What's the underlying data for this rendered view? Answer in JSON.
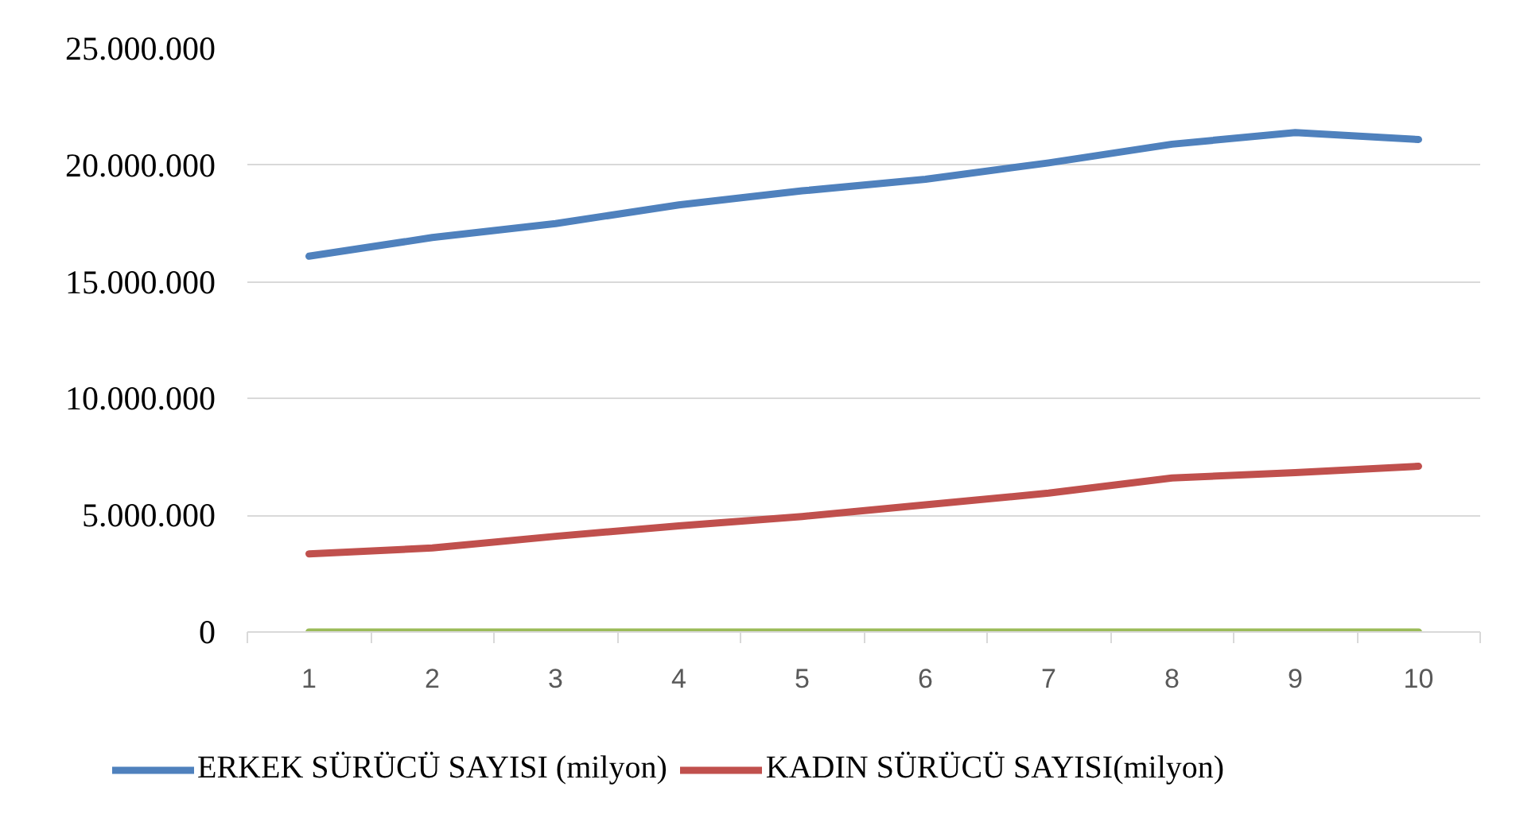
{
  "chart_data": {
    "type": "line",
    "categories": [
      "1",
      "2",
      "3",
      "4",
      "5",
      "6",
      "7",
      "8",
      "9",
      "10"
    ],
    "series": [
      {
        "name": "ERKEK SÜRÜCÜ SAYISI (milyon)",
        "color": "#4f81bd",
        "values": [
          16100000,
          16900000,
          17500000,
          18300000,
          18900000,
          19400000,
          20100000,
          20900000,
          21400000,
          21100000
        ]
      },
      {
        "name": "KADIN SÜRÜCÜ SAYISI(milyon)",
        "color": "#c0504d",
        "values": [
          3350000,
          3600000,
          4100000,
          4550000,
          4950000,
          5450000,
          5950000,
          6600000,
          6830000,
          7100000
        ]
      },
      {
        "color": "#9bbb59",
        "values": [
          0,
          0,
          0,
          0,
          0,
          0,
          0,
          0,
          0,
          0
        ]
      }
    ],
    "ylim": [
      0,
      25000000
    ],
    "yticks": [
      0,
      {
        "value": 5000000,
        "label": "5.000.000"
      },
      {
        "value": 10000000,
        "label": "10.000.000"
      },
      {
        "value": 15000000,
        "label": "15.000.000"
      },
      {
        "value": 20000000,
        "label": "20.000.000"
      },
      {
        "value": 25000000,
        "label": "25.000.000"
      }
    ],
    "grid": "y",
    "legend": "bottom"
  }
}
